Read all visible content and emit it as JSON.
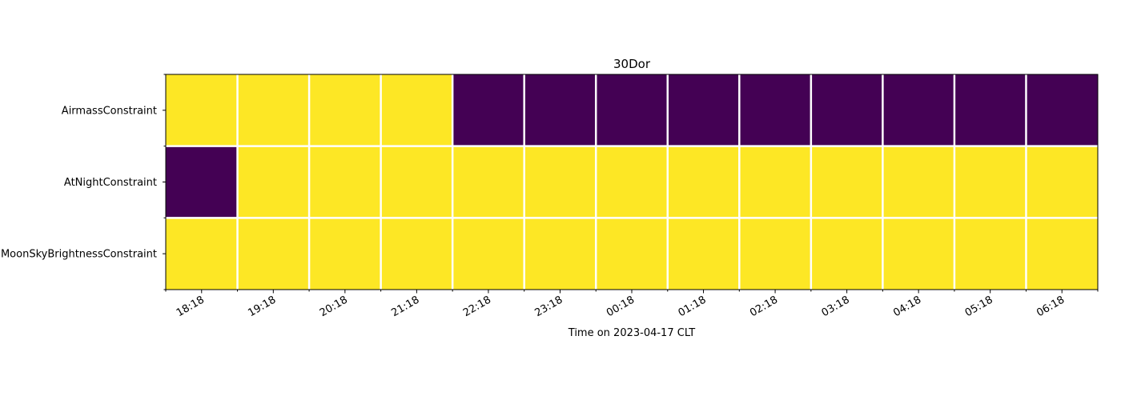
{
  "chart_data": {
    "type": "heatmap",
    "title": "30Dor",
    "xlabel": "Time on 2023-04-17 CLT",
    "ylabel": "",
    "x_tick_labels": [
      "18:18",
      "19:18",
      "20:18",
      "21:18",
      "22:18",
      "23:18",
      "00:18",
      "01:18",
      "02:18",
      "03:18",
      "04:18",
      "05:18",
      "06:18"
    ],
    "rows": [
      {
        "label": "AirmassConstraint",
        "values": [
          1,
          1,
          1,
          1,
          0,
          0,
          0,
          0,
          0,
          0,
          0,
          0,
          0
        ]
      },
      {
        "label": "AtNightConstraint",
        "values": [
          0,
          1,
          1,
          1,
          1,
          1,
          1,
          1,
          1,
          1,
          1,
          1,
          1
        ]
      },
      {
        "label": "MoonSkyBrightnessConstraint",
        "values": [
          1,
          1,
          1,
          1,
          1,
          1,
          1,
          1,
          1,
          1,
          1,
          1,
          1
        ]
      }
    ],
    "value_range": [
      0,
      1
    ],
    "colors": {
      "low": "#440154",
      "high": "#fde725",
      "cell_border": "#ffffff",
      "axis": "#000000"
    },
    "grid": true
  }
}
